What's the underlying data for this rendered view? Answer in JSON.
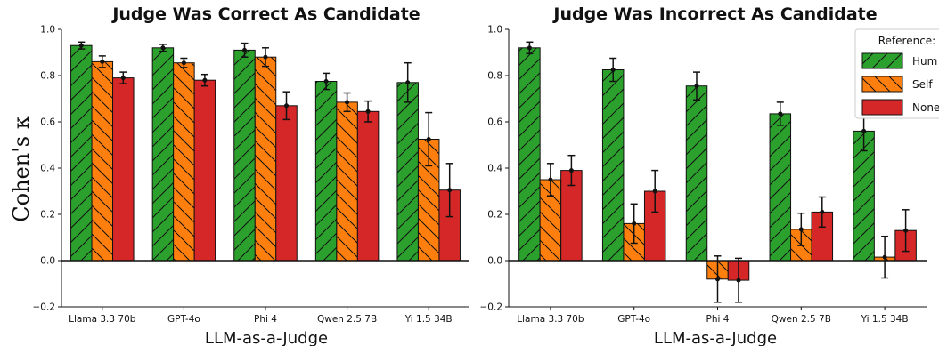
{
  "figure": {
    "ylabel": "Cohen's κ"
  },
  "legend": {
    "title": "Reference:",
    "entries": [
      {
        "name": "Hum",
        "color": "#2ca02c",
        "hatch": "/"
      },
      {
        "name": "Self",
        "color": "#ff7f0e",
        "hatch": "\\"
      },
      {
        "name": "None",
        "color": "#d62728",
        "hatch": ""
      }
    ]
  },
  "chart_data": [
    {
      "type": "bar",
      "title": "Judge Was Correct As Candidate",
      "xlabel": "LLM-as-a-Judge",
      "ylabel": "Cohen's κ",
      "ylim": [
        -0.2,
        1.0
      ],
      "yticks": [
        "−0.2",
        "0.0",
        "0.2",
        "0.4",
        "0.6",
        "0.8",
        "1.0"
      ],
      "categories": [
        "Llama 3.3 70b",
        "GPT-4o",
        "Phi 4",
        "Qwen 2.5 7B",
        "Yi 1.5 34B"
      ],
      "series": [
        {
          "name": "Hum",
          "values": [
            0.93,
            0.92,
            0.91,
            0.775,
            0.77
          ],
          "err": [
            0.015,
            0.015,
            0.03,
            0.035,
            0.085
          ]
        },
        {
          "name": "Self",
          "values": [
            0.86,
            0.855,
            0.88,
            0.685,
            0.525
          ],
          "err": [
            0.025,
            0.02,
            0.04,
            0.04,
            0.115
          ]
        },
        {
          "name": "None",
          "values": [
            0.79,
            0.78,
            0.67,
            0.645,
            0.305
          ],
          "err": [
            0.025,
            0.025,
            0.06,
            0.045,
            0.115
          ]
        }
      ]
    },
    {
      "type": "bar",
      "title": "Judge Was Incorrect As Candidate",
      "xlabel": "LLM-as-a-Judge",
      "ylim": [
        -0.2,
        1.0
      ],
      "yticks": [
        "−0.2",
        "0.0",
        "0.2",
        "0.4",
        "0.6",
        "0.8",
        "1.0"
      ],
      "categories": [
        "Llama 3.3 70b",
        "GPT-4o",
        "Phi 4",
        "Qwen 2.5 7B",
        "Yi 1.5 34B"
      ],
      "series": [
        {
          "name": "Hum",
          "values": [
            0.92,
            0.825,
            0.755,
            0.635,
            0.56
          ],
          "err": [
            0.025,
            0.05,
            0.06,
            0.05,
            0.085
          ]
        },
        {
          "name": "Self",
          "values": [
            0.35,
            0.16,
            -0.08,
            0.135,
            0.015
          ],
          "err": [
            0.07,
            0.085,
            0.1,
            0.07,
            0.09
          ]
        },
        {
          "name": "None",
          "values": [
            0.39,
            0.3,
            -0.085,
            0.21,
            0.13
          ],
          "err": [
            0.065,
            0.09,
            0.095,
            0.065,
            0.09
          ]
        }
      ]
    }
  ]
}
